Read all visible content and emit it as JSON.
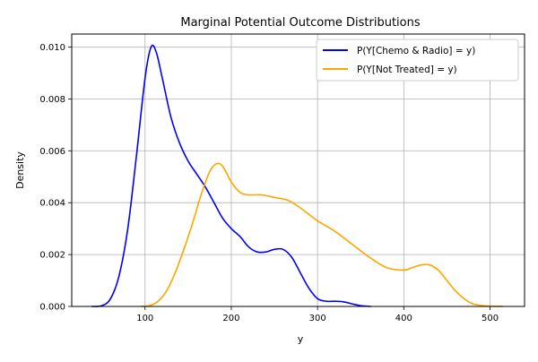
{
  "chart_data": {
    "type": "line",
    "title": "Marginal Potential Outcome Distributions",
    "xlabel": "y",
    "ylabel": "Density",
    "xlim": [
      15,
      540
    ],
    "ylim": [
      0,
      0.0105
    ],
    "x_ticks": [
      100,
      200,
      300,
      400,
      500
    ],
    "y_ticks": [
      0.0,
      0.002,
      0.004,
      0.006,
      0.008,
      0.01
    ],
    "x_tick_labels": [
      "100",
      "200",
      "300",
      "400",
      "500"
    ],
    "y_tick_labels": [
      "0.000",
      "0.002",
      "0.004",
      "0.006",
      "0.008",
      "0.010"
    ],
    "grid": true,
    "legend_position": "top-right",
    "series": [
      {
        "name": "P(Y[Chemo & Radio] = y)",
        "color": "#0000ff",
        "points": [
          [
            38,
            0.0
          ],
          [
            50,
            3e-05
          ],
          [
            60,
            0.0003
          ],
          [
            70,
            0.0012
          ],
          [
            80,
            0.003
          ],
          [
            90,
            0.0058
          ],
          [
            100,
            0.0088
          ],
          [
            107,
            0.01
          ],
          [
            113,
            0.0098
          ],
          [
            120,
            0.0088
          ],
          [
            130,
            0.0073
          ],
          [
            140,
            0.0063
          ],
          [
            150,
            0.0056
          ],
          [
            160,
            0.0051
          ],
          [
            170,
            0.0046
          ],
          [
            180,
            0.004
          ],
          [
            190,
            0.0034
          ],
          [
            200,
            0.003
          ],
          [
            210,
            0.0027
          ],
          [
            220,
            0.0023
          ],
          [
            230,
            0.0021
          ],
          [
            240,
            0.0021
          ],
          [
            250,
            0.0022
          ],
          [
            260,
            0.0022
          ],
          [
            270,
            0.0019
          ],
          [
            280,
            0.0013
          ],
          [
            290,
            0.0007
          ],
          [
            300,
            0.0003
          ],
          [
            310,
            0.0002
          ],
          [
            320,
            0.0002
          ],
          [
            330,
            0.00018
          ],
          [
            340,
            0.0001
          ],
          [
            350,
            3e-05
          ],
          [
            362,
            0.0
          ]
        ]
      },
      {
        "name": "P(Y[Not Treated] = y)",
        "color": "#ffa500",
        "points": [
          [
            95,
            0.0
          ],
          [
            105,
            3e-05
          ],
          [
            115,
            0.0002
          ],
          [
            125,
            0.0006
          ],
          [
            135,
            0.0013
          ],
          [
            145,
            0.0022
          ],
          [
            155,
            0.0032
          ],
          [
            165,
            0.0043
          ],
          [
            175,
            0.0052
          ],
          [
            183,
            0.0055
          ],
          [
            190,
            0.0054
          ],
          [
            200,
            0.0048
          ],
          [
            210,
            0.0044
          ],
          [
            220,
            0.0043
          ],
          [
            235,
            0.0043
          ],
          [
            250,
            0.0042
          ],
          [
            265,
            0.0041
          ],
          [
            280,
            0.0038
          ],
          [
            300,
            0.0033
          ],
          [
            320,
            0.0029
          ],
          [
            340,
            0.0024
          ],
          [
            360,
            0.0019
          ],
          [
            380,
            0.0015
          ],
          [
            400,
            0.0014
          ],
          [
            410,
            0.0015
          ],
          [
            420,
            0.0016
          ],
          [
            430,
            0.0016
          ],
          [
            440,
            0.0014
          ],
          [
            450,
            0.001
          ],
          [
            460,
            0.0006
          ],
          [
            470,
            0.0003
          ],
          [
            480,
            0.0001
          ],
          [
            495,
            2e-05
          ],
          [
            515,
            0.0
          ]
        ]
      }
    ]
  }
}
